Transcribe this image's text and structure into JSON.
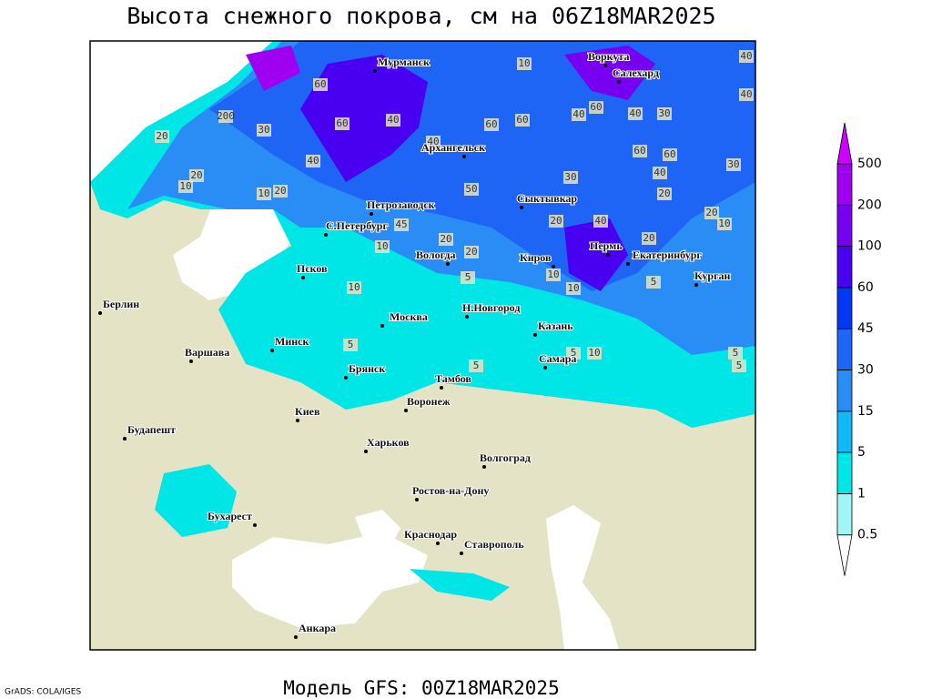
{
  "title": "Высота снежного покрова, см на 06Z18MAR2025",
  "subtitle": "Модель GFS: 00Z18MAR2025",
  "credit": "GrADS: COLA/IGES",
  "cities": [
    "Мурманск",
    "Воркута",
    "Салехард",
    "Архангельск",
    "Сыктывкар",
    "Петрозаводск",
    "С.Петербург",
    "Вологда",
    "Киров",
    "Пермь",
    "Екатеринбург",
    "Курган",
    "Псков",
    "Берлин",
    "Н.Новгород",
    "Москва",
    "Казань",
    "Минск",
    "Варшава",
    "Самара",
    "Брянск",
    "Тамбов",
    "Воронеж",
    "Киев",
    "Будапешт",
    "Харьков",
    "Волгоград",
    "Ростов-на-Дону",
    "Бухарест",
    "Краснодар",
    "Ставрополь",
    "Анкара"
  ],
  "contour_labels": [
    "40",
    "40",
    "10",
    "60",
    "200",
    "20",
    "30",
    "40",
    "60",
    "60",
    "60",
    "40",
    "60",
    "30",
    "40",
    "60",
    "60",
    "30",
    "40",
    "40",
    "40",
    "20",
    "10",
    "10",
    "20",
    "30",
    "50",
    "20",
    "20",
    "10",
    "40",
    "20",
    "20",
    "20",
    "20",
    "10",
    "45",
    "10",
    "10",
    "10",
    "5",
    "5",
    "5",
    "5",
    "10",
    "5",
    "5",
    "5"
  ],
  "legend": {
    "levels": [
      0.5,
      1,
      5,
      15,
      30,
      45,
      60,
      100,
      200,
      500
    ],
    "colors": [
      "#ffffff",
      "#a0f5f5",
      "#00e6e6",
      "#10b8f5",
      "#2a8cf5",
      "#1e64f5",
      "#0038f5",
      "#4a00f0",
      "#7800f0",
      "#a000f0",
      "#d000ff"
    ]
  }
}
